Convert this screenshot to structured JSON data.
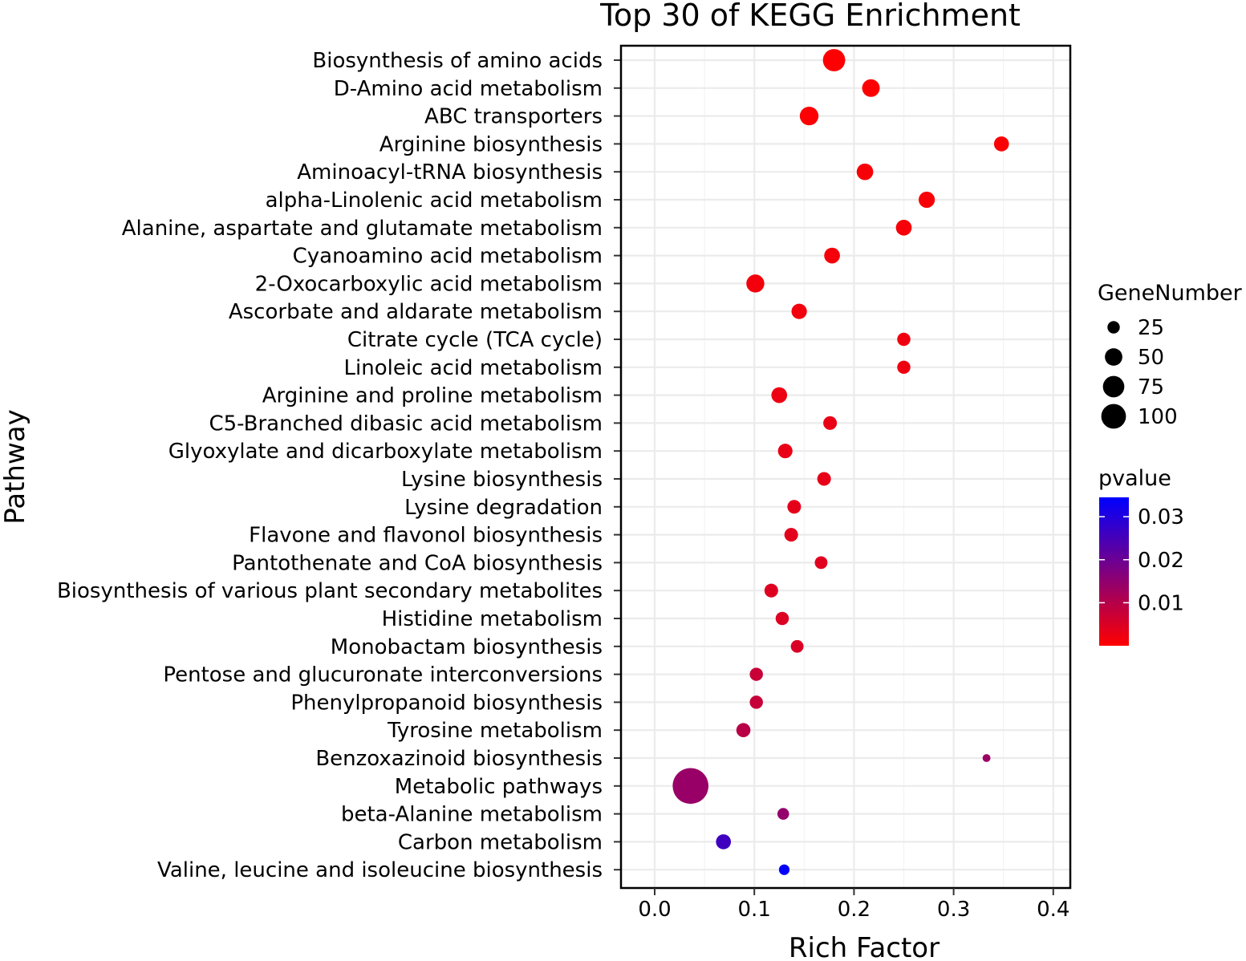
{
  "chart_data": {
    "type": "scatter",
    "title": "Top 30 of KEGG Enrichment",
    "xlabel": "Rich Factor",
    "ylabel": "Pathway",
    "xlim": [
      -0.035,
      0.42
    ],
    "x_ticks": [
      0.0,
      0.1,
      0.2,
      0.3,
      0.4
    ],
    "x_tick_labels": [
      "0.0",
      "0.1",
      "0.2",
      "0.3",
      "0.4"
    ],
    "grid": true,
    "points": [
      {
        "pathway": "Biosynthesis of amino acids",
        "rich_factor": 0.18,
        "gene_number": 40,
        "pvalue": 0.0001
      },
      {
        "pathway": "D-Amino acid metabolism",
        "rich_factor": 0.217,
        "gene_number": 25,
        "pvalue": 0.0003
      },
      {
        "pathway": "ABC transporters",
        "rich_factor": 0.155,
        "gene_number": 28,
        "pvalue": 0.0005
      },
      {
        "pathway": "Arginine biosynthesis",
        "rich_factor": 0.348,
        "gene_number": 18,
        "pvalue": 0.0007
      },
      {
        "pathway": "Aminoacyl-tRNA biosynthesis",
        "rich_factor": 0.211,
        "gene_number": 22,
        "pvalue": 0.0009
      },
      {
        "pathway": "alpha-Linolenic acid metabolism",
        "rich_factor": 0.273,
        "gene_number": 21,
        "pvalue": 0.001
      },
      {
        "pathway": "Alanine, aspartate and glutamate metabolism",
        "rich_factor": 0.25,
        "gene_number": 20,
        "pvalue": 0.0012
      },
      {
        "pathway": "Cyanoamino acid metabolism",
        "rich_factor": 0.178,
        "gene_number": 20,
        "pvalue": 0.0014
      },
      {
        "pathway": "2-Oxocarboxylic acid metabolism",
        "rich_factor": 0.101,
        "gene_number": 26,
        "pvalue": 0.0016
      },
      {
        "pathway": "Ascorbate and aldarate metabolism",
        "rich_factor": 0.145,
        "gene_number": 19,
        "pvalue": 0.0018
      },
      {
        "pathway": "Citrate cycle (TCA cycle)",
        "rich_factor": 0.25,
        "gene_number": 14,
        "pvalue": 0.002
      },
      {
        "pathway": "Linoleic acid metabolism",
        "rich_factor": 0.25,
        "gene_number": 14,
        "pvalue": 0.0022
      },
      {
        "pathway": "Arginine and proline metabolism",
        "rich_factor": 0.125,
        "gene_number": 20,
        "pvalue": 0.0025
      },
      {
        "pathway": "C5-Branched dibasic acid metabolism",
        "rich_factor": 0.176,
        "gene_number": 15,
        "pvalue": 0.0028
      },
      {
        "pathway": "Glyoxylate and dicarboxylate metabolism",
        "rich_factor": 0.131,
        "gene_number": 17,
        "pvalue": 0.003
      },
      {
        "pathway": "Lysine biosynthesis",
        "rich_factor": 0.17,
        "gene_number": 15,
        "pvalue": 0.0032
      },
      {
        "pathway": "Lysine degradation",
        "rich_factor": 0.14,
        "gene_number": 15,
        "pvalue": 0.0035
      },
      {
        "pathway": "Flavone and flavonol biosynthesis",
        "rich_factor": 0.137,
        "gene_number": 15,
        "pvalue": 0.0038
      },
      {
        "pathway": "Pantothenate and CoA biosynthesis",
        "rich_factor": 0.167,
        "gene_number": 13,
        "pvalue": 0.004
      },
      {
        "pathway": "Biosynthesis of various plant secondary metabolites",
        "rich_factor": 0.117,
        "gene_number": 15,
        "pvalue": 0.0045
      },
      {
        "pathway": "Histidine metabolism",
        "rich_factor": 0.128,
        "gene_number": 14,
        "pvalue": 0.0048
      },
      {
        "pathway": "Monobactam biosynthesis",
        "rich_factor": 0.143,
        "gene_number": 13,
        "pvalue": 0.005
      },
      {
        "pathway": "Pentose and glucuronate interconversions",
        "rich_factor": 0.102,
        "gene_number": 14,
        "pvalue": 0.0075
      },
      {
        "pathway": "Phenylpropanoid biosynthesis",
        "rich_factor": 0.102,
        "gene_number": 14,
        "pvalue": 0.0078
      },
      {
        "pathway": "Tyrosine metabolism",
        "rich_factor": 0.089,
        "gene_number": 16,
        "pvalue": 0.0095
      },
      {
        "pathway": "Benzoxazinoid biosynthesis",
        "rich_factor": 0.333,
        "gene_number": 5,
        "pvalue": 0.0135
      },
      {
        "pathway": "Metabolic pathways",
        "rich_factor": 0.036,
        "gene_number": 103,
        "pvalue": 0.014
      },
      {
        "pathway": "beta-Alanine metabolism",
        "rich_factor": 0.129,
        "gene_number": 11,
        "pvalue": 0.0145
      },
      {
        "pathway": "Carbon metabolism",
        "rich_factor": 0.069,
        "gene_number": 18,
        "pvalue": 0.026
      },
      {
        "pathway": "Valine, leucine and isoleucine biosynthesis",
        "rich_factor": 0.13,
        "gene_number": 9,
        "pvalue": 0.034
      }
    ],
    "size_legend": {
      "title": "GeneNumber",
      "values": [
        25,
        50,
        75,
        100
      ],
      "labels": [
        "25",
        "50",
        "75",
        "100"
      ]
    },
    "color_legend": {
      "title": "pvalue",
      "range": [
        0.0,
        0.0345
      ],
      "ticks": [
        0.01,
        0.02,
        0.03
      ],
      "tick_labels": [
        "0.01",
        "0.02",
        "0.03"
      ],
      "low_color": "#ff0000",
      "high_color": "#0000ff"
    },
    "panel_background": "#ffffff",
    "grid_color": "#ebebeb"
  }
}
